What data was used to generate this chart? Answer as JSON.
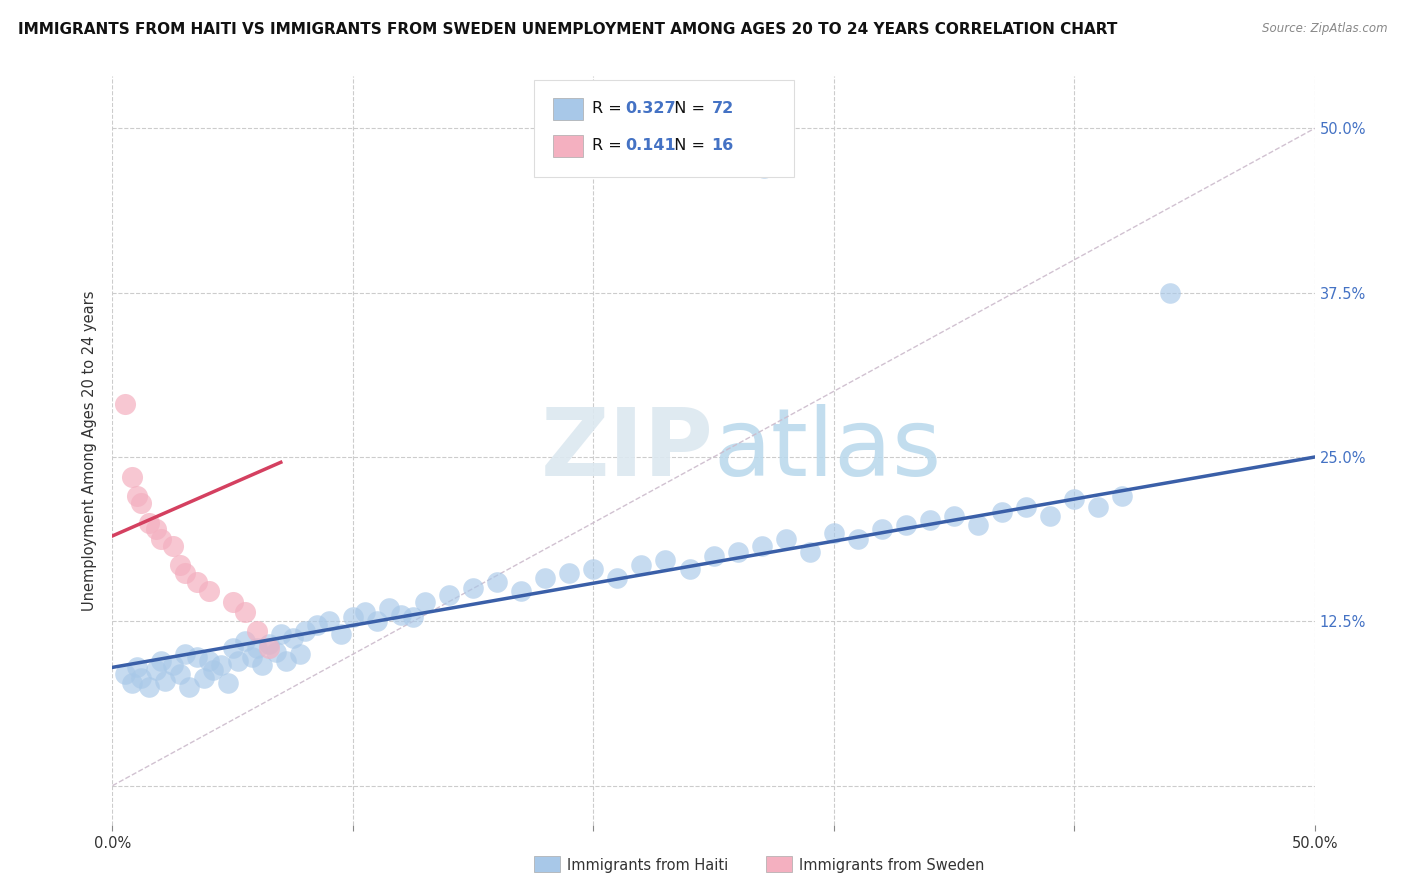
{
  "title": "IMMIGRANTS FROM HAITI VS IMMIGRANTS FROM SWEDEN UNEMPLOYMENT AMONG AGES 20 TO 24 YEARS CORRELATION CHART",
  "source": "Source: ZipAtlas.com",
  "xlabel_haiti": "Immigrants from Haiti",
  "xlabel_sweden": "Immigrants from Sweden",
  "ylabel": "Unemployment Among Ages 20 to 24 years",
  "xlim": [
    0.0,
    0.5
  ],
  "ylim": [
    -0.03,
    0.54
  ],
  "xtick_positions": [
    0.0,
    0.1,
    0.2,
    0.3,
    0.4,
    0.5
  ],
  "xticklabels_show": {
    "0": "0.0%",
    "5": "50.0%"
  },
  "ytick_positions": [
    0.0,
    0.125,
    0.25,
    0.375,
    0.5
  ],
  "yticklabels": [
    "",
    "12.5%",
    "25.0%",
    "37.5%",
    "50.0%"
  ],
  "haiti_R": "0.327",
  "haiti_N": "72",
  "sweden_R": "0.141",
  "sweden_N": "16",
  "haiti_color": "#a8c8e8",
  "sweden_color": "#f4b0c0",
  "haiti_line_color": "#3a5fa8",
  "sweden_line_color": "#d44060",
  "diag_color": "#ccbbcc",
  "watermark_color": "#dce8f0",
  "background_color": "#ffffff",
  "grid_color": "#cccccc",
  "right_label_color": "#4472c4",
  "legend_box_color": "#dddddd",
  "haiti_scatter_x": [
    0.005,
    0.008,
    0.01,
    0.012,
    0.015,
    0.018,
    0.02,
    0.022,
    0.025,
    0.028,
    0.03,
    0.032,
    0.035,
    0.038,
    0.04,
    0.042,
    0.045,
    0.048,
    0.05,
    0.052,
    0.055,
    0.058,
    0.06,
    0.062,
    0.065,
    0.068,
    0.07,
    0.072,
    0.075,
    0.078,
    0.08,
    0.085,
    0.09,
    0.095,
    0.1,
    0.105,
    0.11,
    0.115,
    0.12,
    0.125,
    0.13,
    0.14,
    0.15,
    0.16,
    0.17,
    0.18,
    0.19,
    0.2,
    0.21,
    0.22,
    0.23,
    0.24,
    0.25,
    0.26,
    0.27,
    0.28,
    0.29,
    0.3,
    0.31,
    0.32,
    0.33,
    0.34,
    0.35,
    0.36,
    0.37,
    0.38,
    0.39,
    0.4,
    0.41,
    0.42,
    0.271,
    0.44
  ],
  "haiti_scatter_y": [
    0.085,
    0.078,
    0.09,
    0.082,
    0.075,
    0.088,
    0.095,
    0.08,
    0.092,
    0.085,
    0.1,
    0.075,
    0.098,
    0.082,
    0.095,
    0.088,
    0.092,
    0.078,
    0.105,
    0.095,
    0.11,
    0.098,
    0.105,
    0.092,
    0.108,
    0.102,
    0.115,
    0.095,
    0.112,
    0.1,
    0.118,
    0.122,
    0.125,
    0.115,
    0.128,
    0.132,
    0.125,
    0.135,
    0.13,
    0.128,
    0.14,
    0.145,
    0.15,
    0.155,
    0.148,
    0.158,
    0.162,
    0.165,
    0.158,
    0.168,
    0.172,
    0.165,
    0.175,
    0.178,
    0.182,
    0.188,
    0.178,
    0.192,
    0.188,
    0.195,
    0.198,
    0.202,
    0.205,
    0.198,
    0.208,
    0.212,
    0.205,
    0.218,
    0.212,
    0.22,
    0.47,
    0.375
  ],
  "sweden_scatter_x": [
    0.005,
    0.008,
    0.01,
    0.012,
    0.015,
    0.018,
    0.02,
    0.025,
    0.028,
    0.03,
    0.035,
    0.04,
    0.05,
    0.055,
    0.06,
    0.065
  ],
  "sweden_scatter_y": [
    0.29,
    0.235,
    0.22,
    0.215,
    0.2,
    0.195,
    0.188,
    0.182,
    0.168,
    0.162,
    0.155,
    0.148,
    0.14,
    0.132,
    0.118,
    0.105
  ]
}
